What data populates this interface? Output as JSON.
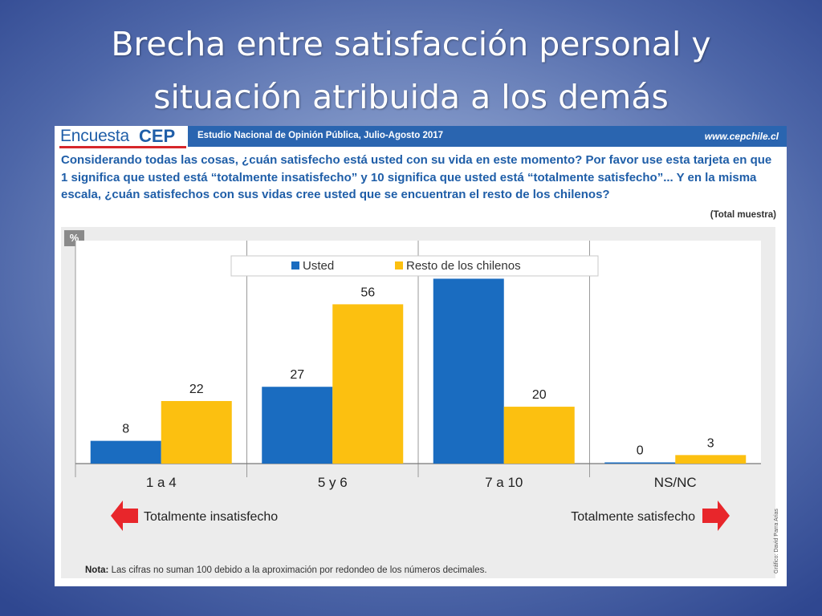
{
  "slide": {
    "title_line1": "Brecha entre satisfacción personal y",
    "title_line2": "situación atribuida a los demás"
  },
  "header": {
    "logo_encuesta": "Encuesta",
    "logo_cep": "CEP",
    "study": "Estudio Nacional de Opinión Pública, Julio-Agosto 2017",
    "website": "www.cepchile.cl"
  },
  "question": "Considerando todas las cosas, ¿cuán satisfecho está usted con su vida en este momento? Por favor use esta tarjeta en que 1 significa que usted está “totalmente insatisfecho” y 10 significa que usted está “totalmente satisfecho”... Y en la misma escala, ¿cuán satisfechos con sus vidas cree usted que se encuentran el resto de los chilenos?",
  "sample_label": "(Total muestra)",
  "unit_badge": "%",
  "scale": {
    "left_label": "Totalmente insatisfecho",
    "right_label": "Totalmente satisfecho"
  },
  "note": {
    "prefix": "Nota:",
    "text": "Las cifras no suman 100 debido a la aproximación por redondeo de los números decimales."
  },
  "credit": "Gráfico: David Parra Arias",
  "colors": {
    "usted": "#1a6cc0",
    "resto": "#fcc010",
    "arrow": "#e8262b",
    "header": "#2a65b0"
  },
  "chart_data": {
    "type": "bar",
    "title": "",
    "xlabel": "",
    "ylabel": "",
    "ylim": [
      0,
      75
    ],
    "grid": false,
    "legend_position": "top-center",
    "categories": [
      "1 a 4",
      "5 y 6",
      "7 a 10",
      "NS/NC"
    ],
    "series": [
      {
        "name": "Usted",
        "values": [
          8,
          27,
          65,
          0
        ]
      },
      {
        "name": "Resto de los chilenos",
        "values": [
          22,
          56,
          20,
          3
        ]
      }
    ]
  }
}
